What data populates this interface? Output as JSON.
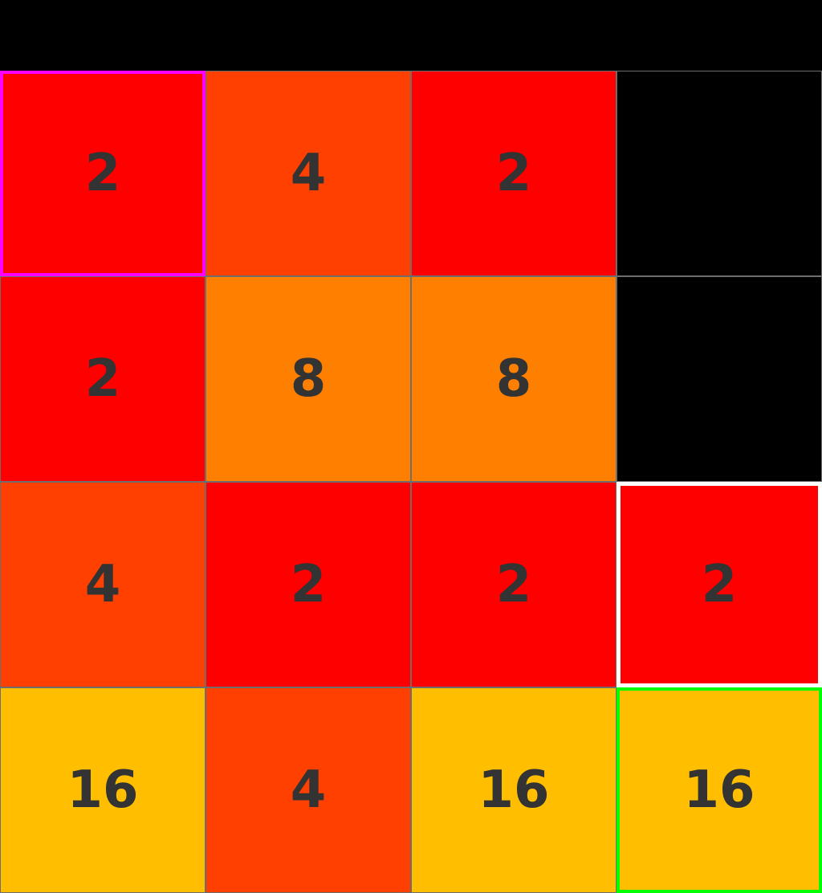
{
  "colors": {
    "background": "#000000",
    "empty": "#000000",
    "tile_2": "#ff0000",
    "tile_4": "#ff4000",
    "tile_8": "#ff8000",
    "tile_16": "#ffbf00",
    "text": "#333333",
    "highlight_magenta": "#ff00ff",
    "highlight_white": "#ffffff",
    "highlight_green": "#00ff00"
  },
  "board": {
    "rows": [
      [
        {
          "value": "2",
          "highlight": "magenta"
        },
        {
          "value": "4",
          "highlight": ""
        },
        {
          "value": "2",
          "highlight": ""
        },
        {
          "value": "",
          "highlight": ""
        }
      ],
      [
        {
          "value": "2",
          "highlight": ""
        },
        {
          "value": "8",
          "highlight": ""
        },
        {
          "value": "8",
          "highlight": ""
        },
        {
          "value": "",
          "highlight": ""
        }
      ],
      [
        {
          "value": "4",
          "highlight": ""
        },
        {
          "value": "2",
          "highlight": ""
        },
        {
          "value": "2",
          "highlight": ""
        },
        {
          "value": "2",
          "highlight": "white"
        }
      ],
      [
        {
          "value": "16",
          "highlight": ""
        },
        {
          "value": "4",
          "highlight": ""
        },
        {
          "value": "16",
          "highlight": ""
        },
        {
          "value": "16",
          "highlight": "green"
        }
      ]
    ]
  }
}
